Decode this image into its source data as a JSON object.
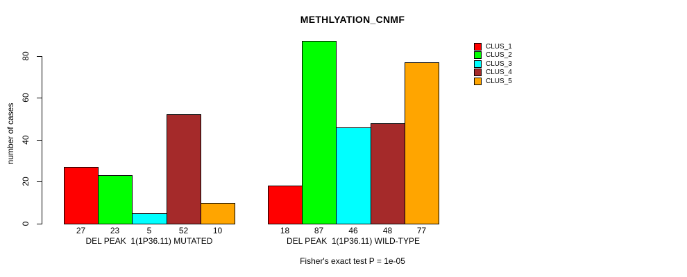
{
  "chart_data": {
    "type": "bar",
    "title": "METHLYATION_CNMF",
    "ylabel": "number of cases",
    "xlabel": "",
    "ylim": [
      0,
      87
    ],
    "yticks": [
      0,
      20,
      40,
      60,
      80
    ],
    "grid": false,
    "legend_position": "top-right",
    "series": [
      {
        "name": "CLUS_1",
        "color": "#FF0000"
      },
      {
        "name": "CLUS_2",
        "color": "#00FF00"
      },
      {
        "name": "CLUS_3",
        "color": "#00FFFF"
      },
      {
        "name": "CLUS_4",
        "color": "#A52A2A"
      },
      {
        "name": "CLUS_5",
        "color": "#FFA500"
      }
    ],
    "groups": [
      {
        "label": "DEL PEAK  1(1P36.11) MUTATED",
        "values": [
          27,
          23,
          5,
          52,
          10
        ]
      },
      {
        "label": "DEL PEAK  1(1P36.11) WILD-TYPE",
        "values": [
          18,
          87,
          46,
          48,
          77
        ]
      }
    ],
    "annotation": "Fisher's exact test P = 1e-05"
  }
}
